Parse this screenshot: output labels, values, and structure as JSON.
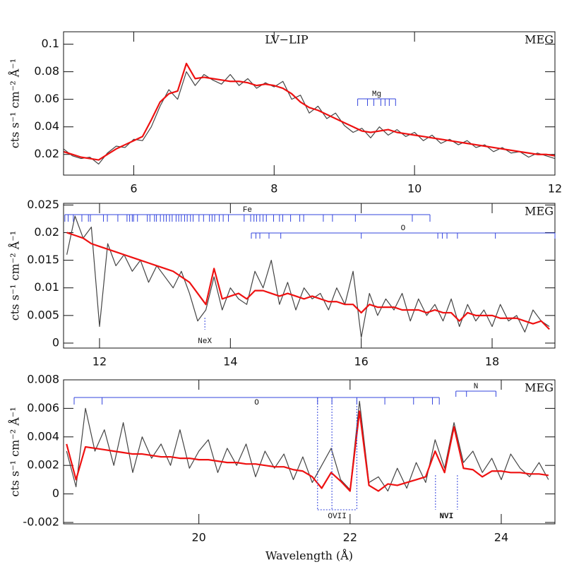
{
  "chart_data": [
    {
      "type": "line",
      "title": "LV−LIP",
      "label": "MEG",
      "label_color": "#ee1111",
      "ylabel": "cts s⁻¹ cm⁻² Å⁻¹",
      "xlim": [
        5,
        12
      ],
      "xticks": [
        6,
        8,
        10,
        12
      ],
      "ylim": [
        0.005,
        0.109
      ],
      "yticks": [
        0.02,
        0.04,
        0.06,
        0.08,
        0.1
      ],
      "x": [
        5.0,
        5.125,
        5.25,
        5.375,
        5.5,
        5.625,
        5.75,
        5.875,
        6.0,
        6.125,
        6.25,
        6.375,
        6.5,
        6.625,
        6.75,
        6.875,
        7.0,
        7.125,
        7.25,
        7.375,
        7.5,
        7.625,
        7.75,
        7.875,
        8.0,
        8.125,
        8.25,
        8.375,
        8.5,
        8.625,
        8.75,
        8.875,
        9.0,
        9.125,
        9.25,
        9.375,
        9.5,
        9.625,
        9.75,
        9.875,
        10.0,
        10.125,
        10.25,
        10.375,
        10.5,
        10.625,
        10.75,
        10.875,
        11.0,
        11.125,
        11.25,
        11.375,
        11.5,
        11.625,
        11.75,
        11.875,
        12.0
      ],
      "series": [
        {
          "color": "#444444",
          "values": [
            0.024,
            0.019,
            0.017,
            0.018,
            0.013,
            0.021,
            0.026,
            0.025,
            0.031,
            0.03,
            0.04,
            0.055,
            0.067,
            0.06,
            0.08,
            0.07,
            0.078,
            0.074,
            0.071,
            0.078,
            0.07,
            0.075,
            0.068,
            0.072,
            0.069,
            0.073,
            0.06,
            0.063,
            0.05,
            0.055,
            0.046,
            0.05,
            0.041,
            0.036,
            0.039,
            0.032,
            0.04,
            0.034,
            0.038,
            0.033,
            0.036,
            0.03,
            0.034,
            0.028,
            0.031,
            0.027,
            0.03,
            0.025,
            0.027,
            0.022,
            0.025,
            0.021,
            0.022,
            0.018,
            0.021,
            0.019,
            0.017
          ]
        },
        {
          "color": "#ee1111",
          "values": [
            0.022,
            0.02,
            0.018,
            0.017,
            0.016,
            0.02,
            0.024,
            0.027,
            0.03,
            0.033,
            0.045,
            0.058,
            0.064,
            0.066,
            0.086,
            0.075,
            0.076,
            0.075,
            0.074,
            0.073,
            0.073,
            0.072,
            0.07,
            0.071,
            0.07,
            0.068,
            0.064,
            0.058,
            0.054,
            0.052,
            0.049,
            0.046,
            0.043,
            0.04,
            0.037,
            0.036,
            0.037,
            0.038,
            0.036,
            0.035,
            0.034,
            0.033,
            0.032,
            0.031,
            0.03,
            0.029,
            0.028,
            0.027,
            0.026,
            0.025,
            0.024,
            0.023,
            0.022,
            0.021,
            0.02,
            0.02,
            0.019
          ]
        }
      ],
      "annotations": [
        {
          "text": "Mg",
          "style": "bracket",
          "color": "#3344dd",
          "lines": [
            9.19,
            9.33,
            9.42,
            9.52,
            9.58,
            9.64,
            9.73
          ]
        }
      ]
    },
    {
      "type": "line",
      "label": "MEG",
      "label_color": "#ee1111",
      "ylabel": "cts s⁻¹ cm⁻² Å⁻¹",
      "xlim": [
        11.45,
        18.96
      ],
      "xticks": [
        12,
        14,
        16,
        18
      ],
      "ylim": [
        -0.0009,
        0.0253
      ],
      "yticks": [
        0,
        0.005,
        0.01,
        0.015,
        0.02,
        0.025
      ],
      "x": [
        11.5,
        11.625,
        11.75,
        11.875,
        12.0,
        12.125,
        12.25,
        12.375,
        12.5,
        12.625,
        12.75,
        12.875,
        13.0,
        13.125,
        13.25,
        13.375,
        13.5,
        13.625,
        13.75,
        13.875,
        14.0,
        14.125,
        14.25,
        14.375,
        14.5,
        14.625,
        14.75,
        14.875,
        15.0,
        15.125,
        15.25,
        15.375,
        15.5,
        15.625,
        15.75,
        15.875,
        16.0,
        16.125,
        16.25,
        16.375,
        16.5,
        16.625,
        16.75,
        16.875,
        17.0,
        17.125,
        17.25,
        17.375,
        17.5,
        17.625,
        17.75,
        17.875,
        18.0,
        18.125,
        18.25,
        18.375,
        18.5,
        18.625,
        18.75,
        18.875
      ],
      "series": [
        {
          "color": "#444444",
          "values": [
            0.016,
            0.023,
            0.019,
            0.021,
            0.003,
            0.018,
            0.014,
            0.016,
            0.013,
            0.015,
            0.011,
            0.014,
            0.012,
            0.01,
            0.013,
            0.009,
            0.004,
            0.006,
            0.012,
            0.006,
            0.01,
            0.008,
            0.007,
            0.013,
            0.01,
            0.015,
            0.007,
            0.011,
            0.006,
            0.01,
            0.008,
            0.009,
            0.006,
            0.01,
            0.007,
            0.013,
            0.001,
            0.009,
            0.005,
            0.008,
            0.006,
            0.009,
            0.004,
            0.008,
            0.005,
            0.007,
            0.004,
            0.008,
            0.003,
            0.007,
            0.004,
            0.006,
            0.003,
            0.007,
            0.004,
            0.005,
            0.002,
            0.006,
            0.004,
            0.003
          ]
        },
        {
          "color": "#ee1111",
          "values": [
            0.02,
            0.0195,
            0.019,
            0.018,
            0.0175,
            0.017,
            0.0165,
            0.016,
            0.0155,
            0.015,
            0.0145,
            0.014,
            0.0135,
            0.013,
            0.012,
            0.011,
            0.009,
            0.007,
            0.0135,
            0.008,
            0.0085,
            0.009,
            0.008,
            0.0095,
            0.0095,
            0.009,
            0.0085,
            0.009,
            0.0085,
            0.008,
            0.0085,
            0.008,
            0.0075,
            0.0075,
            0.007,
            0.007,
            0.0055,
            0.007,
            0.0065,
            0.0065,
            0.0065,
            0.006,
            0.006,
            0.006,
            0.0055,
            0.006,
            0.0055,
            0.0055,
            0.004,
            0.0055,
            0.005,
            0.005,
            0.005,
            0.0045,
            0.0045,
            0.0045,
            0.004,
            0.0035,
            0.004,
            0.0025
          ]
        }
      ],
      "annotations": [
        {
          "text": "Fe",
          "style": "bracket",
          "color": "#3344dd",
          "lines": [
            11.47,
            11.52,
            11.6,
            11.73,
            11.83,
            11.86,
            12.06,
            12.12,
            12.28,
            12.42,
            12.46,
            12.5,
            12.52,
            12.58,
            12.73,
            12.77,
            12.84,
            12.87,
            12.93,
            12.98,
            13.02,
            13.07,
            13.11,
            13.17,
            13.21,
            13.25,
            13.3,
            13.34,
            13.39,
            13.43,
            13.52,
            13.59,
            13.68,
            13.72,
            13.76,
            13.83,
            13.89,
            13.97,
            14.21,
            14.31,
            14.36,
            14.4,
            14.45,
            14.5,
            14.55,
            14.66,
            14.75,
            14.8,
            14.92,
            15.06,
            15.12,
            15.42,
            15.56,
            15.91,
            16.78,
            17.05
          ]
        },
        {
          "text": "O",
          "style": "bracket",
          "color": "#3344dd",
          "lines": [
            14.32,
            14.39,
            14.45,
            14.59,
            14.77,
            16.0,
            17.17,
            17.24,
            17.31,
            17.47,
            18.05,
            18.96
          ]
        },
        {
          "text": "NeX",
          "style": "dotted",
          "color": "#3344dd",
          "lines": [
            13.61
          ]
        }
      ]
    },
    {
      "type": "line",
      "label": "MEG",
      "label_color": "#ee1111",
      "ylabel": "cts s⁻¹ cm⁻² Å⁻¹",
      "xlabel": "Wavelength (Å)",
      "xlim": [
        18.21,
        24.71
      ],
      "xticks": [
        20,
        22,
        24
      ],
      "ylim": [
        -0.0021,
        0.008
      ],
      "yticks": [
        -0.002,
        0,
        0.002,
        0.004,
        0.006,
        0.008
      ],
      "x": [
        18.25,
        18.375,
        18.5,
        18.625,
        18.75,
        18.875,
        19.0,
        19.125,
        19.25,
        19.375,
        19.5,
        19.625,
        19.75,
        19.875,
        20.0,
        20.125,
        20.25,
        20.375,
        20.5,
        20.625,
        20.75,
        20.875,
        21.0,
        21.125,
        21.25,
        21.375,
        21.5,
        21.625,
        21.75,
        21.875,
        22.0,
        22.125,
        22.25,
        22.375,
        22.5,
        22.625,
        22.75,
        22.875,
        23.0,
        23.125,
        23.25,
        23.375,
        23.5,
        23.625,
        23.75,
        23.875,
        24.0,
        24.125,
        24.25,
        24.375,
        24.5,
        24.625
      ],
      "series": [
        {
          "color": "#444444",
          "values": [
            0.003,
            0.0005,
            0.006,
            0.003,
            0.0045,
            0.002,
            0.005,
            0.0015,
            0.004,
            0.0025,
            0.0035,
            0.002,
            0.0045,
            0.0018,
            0.003,
            0.0038,
            0.0015,
            0.0032,
            0.002,
            0.0035,
            0.0012,
            0.003,
            0.0018,
            0.0028,
            0.001,
            0.0026,
            0.0008,
            0.002,
            0.0032,
            0.001,
            0.0003,
            0.0065,
            0.0008,
            0.0012,
            0.0002,
            0.0018,
            0.0004,
            0.0022,
            0.0008,
            0.0038,
            0.0018,
            0.005,
            0.0022,
            0.003,
            0.0015,
            0.0025,
            0.001,
            0.0028,
            0.0018,
            0.0012,
            0.0022,
            0.001
          ]
        },
        {
          "color": "#ee1111",
          "values": [
            0.0035,
            0.001,
            0.0033,
            0.0032,
            0.0031,
            0.003,
            0.0029,
            0.0028,
            0.0028,
            0.0027,
            0.0026,
            0.0026,
            0.0025,
            0.0025,
            0.0024,
            0.0024,
            0.0023,
            0.0022,
            0.0022,
            0.0021,
            0.0021,
            0.002,
            0.0019,
            0.0019,
            0.0017,
            0.0016,
            0.0012,
            0.0004,
            0.0015,
            0.0009,
            0.0002,
            0.0058,
            0.0006,
            0.0002,
            0.0007,
            0.0006,
            0.0008,
            0.001,
            0.0012,
            0.003,
            0.0015,
            0.0047,
            0.0018,
            0.0017,
            0.0012,
            0.0016,
            0.0016,
            0.0015,
            0.0015,
            0.0014,
            0.0014,
            0.0013
          ]
        }
      ],
      "annotations": [
        {
          "text": "O",
          "style": "bracket",
          "color": "#3344dd",
          "lines": [
            18.35,
            18.72,
            21.57,
            21.76,
            22.09,
            22.46,
            22.84,
            23.09,
            23.18
          ]
        },
        {
          "text": "N",
          "style": "bracket",
          "color": "#3344dd",
          "lines": [
            23.4,
            23.54,
            23.93
          ]
        },
        {
          "text": "OVII",
          "style": "dotted",
          "color": "#3344dd",
          "lines": [
            21.57,
            21.76,
            22.09
          ]
        },
        {
          "text": "NVI",
          "style": "dotted",
          "color": "#3344dd",
          "lines": [
            23.13,
            23.42
          ]
        }
      ]
    }
  ]
}
